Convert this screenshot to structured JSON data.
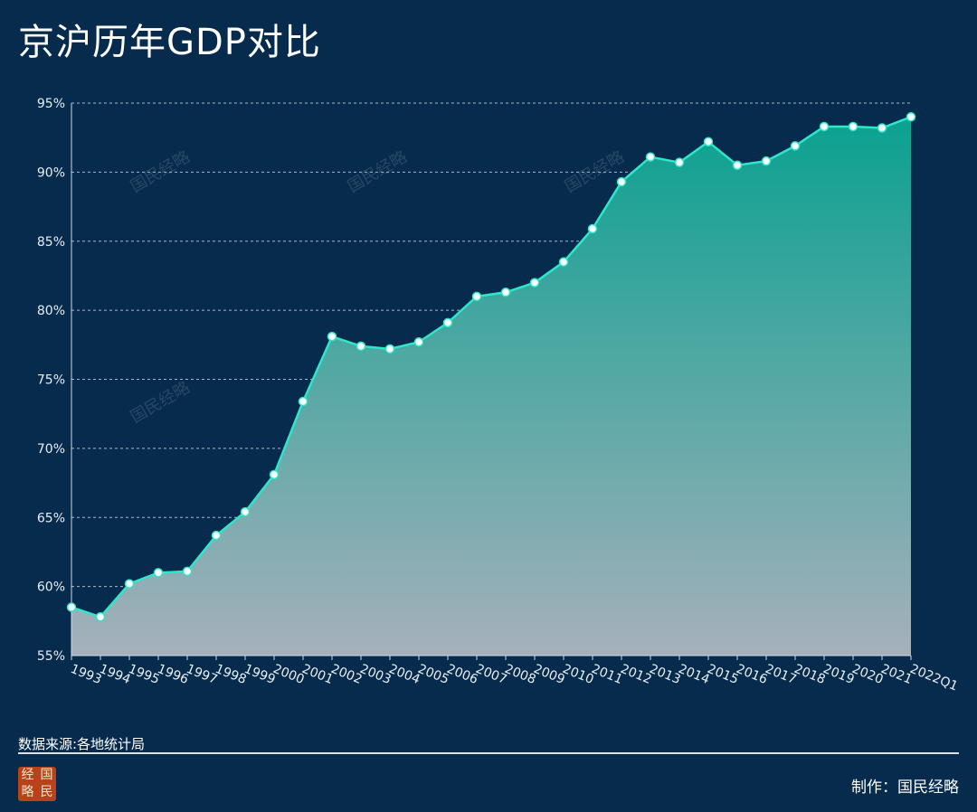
{
  "title": "京沪历年GDP对比",
  "source": "数据来源:各地统计局",
  "credit": "制作：国民经略",
  "logo_chars": [
    "经",
    "国",
    "略",
    "民"
  ],
  "watermark_text": "国民经略",
  "colors": {
    "background": "#062b4d",
    "line": "#2ee6c8",
    "area_top": "#0aa190",
    "area_bottom": "#a6b0bb",
    "grid": "#c8d2dc",
    "marker_fill": "#ffffff",
    "marker_stroke": "#2ee6c8"
  },
  "chart_data": {
    "type": "area",
    "title": "京沪历年GDP对比",
    "xlabel": "",
    "ylabel": "",
    "ylim": [
      55,
      95
    ],
    "yticks": [
      "55%",
      "60%",
      "65%",
      "70%",
      "75%",
      "80%",
      "85%",
      "90%",
      "95%"
    ],
    "grid": true,
    "legend": "none",
    "categories": [
      "1993",
      "1994",
      "1995",
      "1996",
      "1997",
      "1998",
      "1999",
      "2000",
      "2001",
      "2002",
      "2003",
      "2004",
      "2005",
      "2006",
      "2007",
      "2008",
      "2009",
      "2010",
      "2011",
      "2012",
      "2013",
      "2014",
      "2015",
      "2016",
      "2017",
      "2018",
      "2019",
      "2020",
      "2021",
      "2022Q1"
    ],
    "series": [
      {
        "values": [
          58.5,
          57.8,
          60.2,
          61.0,
          61.1,
          63.7,
          65.4,
          68.1,
          73.4,
          78.1,
          77.4,
          77.2,
          77.7,
          79.1,
          81.0,
          81.3,
          82.0,
          83.5,
          85.9,
          89.3,
          91.1,
          90.7,
          92.2,
          90.5,
          90.8,
          91.9,
          93.3,
          93.3,
          93.2,
          94.0
        ]
      }
    ]
  }
}
